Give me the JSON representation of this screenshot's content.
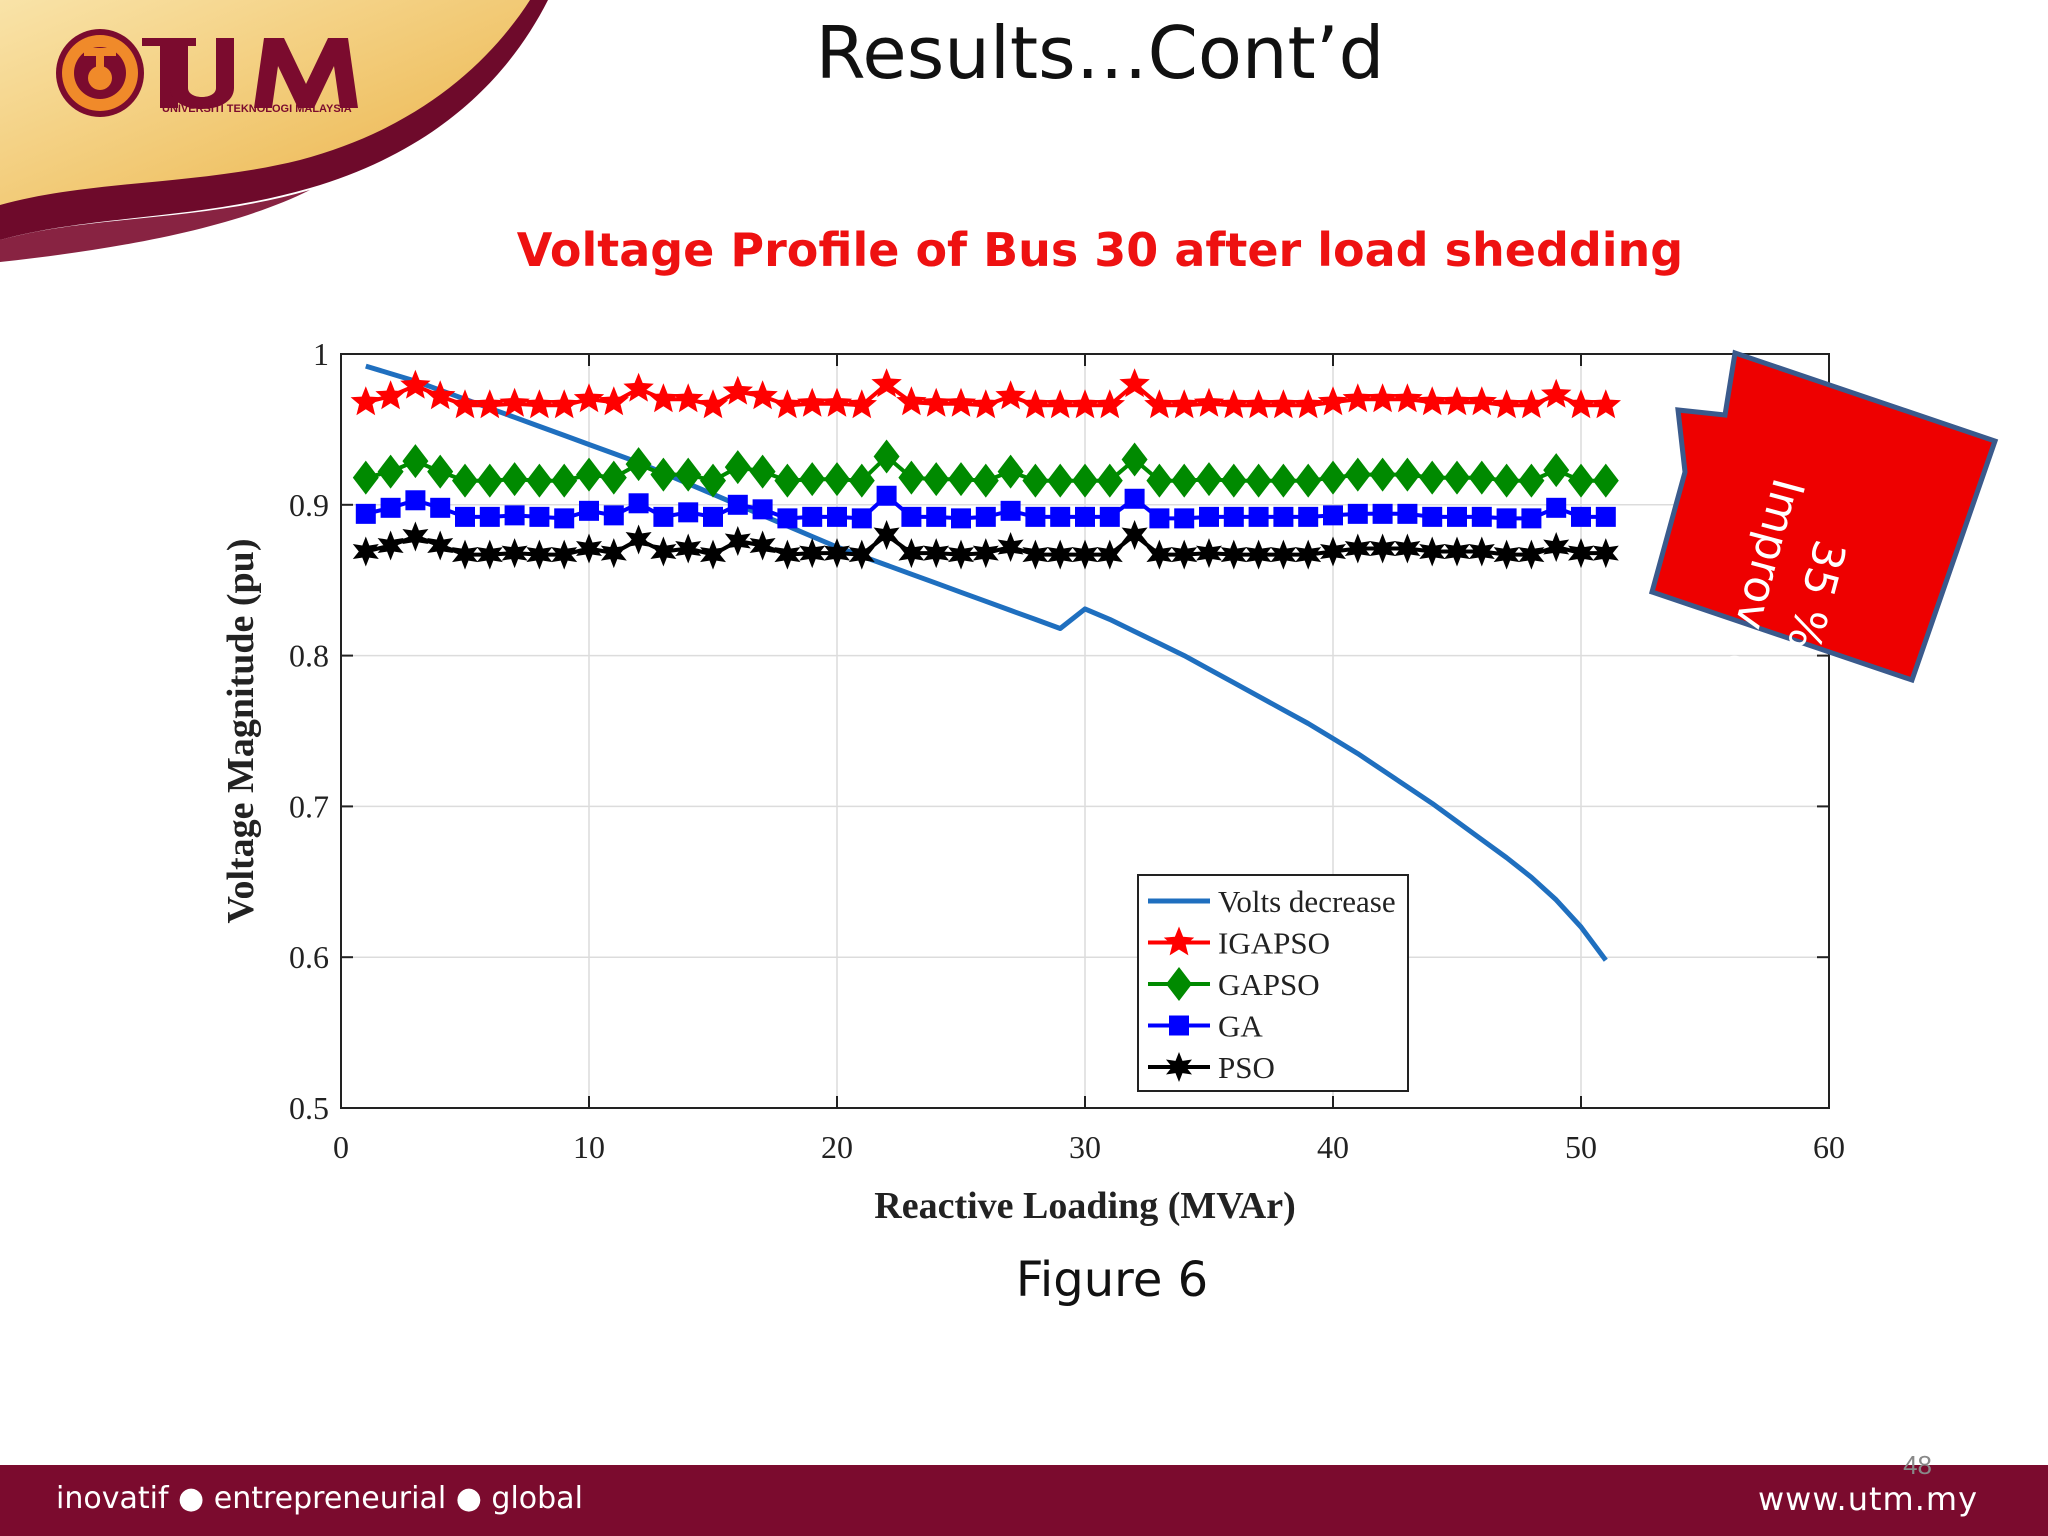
{
  "slide": {
    "title": "Results…Cont’d",
    "chart_heading": "Voltage Profile of Bus 30 after load shedding",
    "figure_caption": "Figure 6",
    "page_number": "48",
    "callout": {
      "line1": "35 %",
      "line2": "Improved",
      "fill_color": "#ee0000",
      "border_color": "#3a5a8c"
    }
  },
  "logo": {
    "name": "UTM",
    "subtitle": "UNIVERSITI TEKNOLOGI MALAYSIA"
  },
  "footer": {
    "tagline": "inovatif ● entrepreneurial ● global",
    "url": "www.utm.my"
  },
  "colors": {
    "brand_maroon": "#7b0b2e",
    "brand_gold": "#f2c26a",
    "heading_red": "#ee1111"
  },
  "chart_data": {
    "type": "line",
    "title": "",
    "xlabel": "Reactive Loading (MVAr)",
    "ylabel": "Voltage Magnitude (pu)",
    "xlim": [
      0,
      60
    ],
    "ylim": [
      0.5,
      1
    ],
    "xticks": [
      "0",
      "10",
      "20",
      "30",
      "40",
      "50",
      "60"
    ],
    "yticks": [
      "0.5",
      "0.6",
      "0.7",
      "0.8",
      "0.9",
      "1"
    ],
    "grid": true,
    "legend_position": "bottom-center",
    "x": [
      1,
      2,
      3,
      4,
      5,
      6,
      7,
      8,
      9,
      10,
      11,
      12,
      13,
      14,
      15,
      16,
      17,
      18,
      19,
      20,
      21,
      22,
      23,
      24,
      25,
      26,
      27,
      28,
      29,
      30,
      31,
      32,
      33,
      34,
      35,
      36,
      37,
      38,
      39,
      40,
      41,
      42,
      43,
      44,
      45,
      46,
      47,
      48,
      49,
      50,
      51
    ],
    "series": [
      {
        "name": "Volts decrease",
        "color": "#1f6fbf",
        "marker": "none",
        "values": [
          0.992,
          0.987,
          0.982,
          0.976,
          0.97,
          0.964,
          0.958,
          0.952,
          0.946,
          0.94,
          0.934,
          0.928,
          0.921,
          0.914,
          0.907,
          0.9,
          0.893,
          0.886,
          0.879,
          0.872,
          0.866,
          0.86,
          0.854,
          0.848,
          0.842,
          0.836,
          0.83,
          0.824,
          0.818,
          0.831,
          0.824,
          0.816,
          0.808,
          0.8,
          0.791,
          0.782,
          0.773,
          0.764,
          0.755,
          0.745,
          0.735,
          0.724,
          0.713,
          0.702,
          0.69,
          0.678,
          0.666,
          0.653,
          0.638,
          0.62,
          0.598
        ]
      },
      {
        "name": "IGAPSO",
        "color": "#ff0000",
        "marker": "star5",
        "values": [
          0.968,
          0.972,
          0.979,
          0.972,
          0.966,
          0.966,
          0.967,
          0.966,
          0.966,
          0.97,
          0.968,
          0.977,
          0.97,
          0.97,
          0.966,
          0.975,
          0.972,
          0.966,
          0.967,
          0.967,
          0.966,
          0.98,
          0.968,
          0.967,
          0.967,
          0.966,
          0.972,
          0.966,
          0.966,
          0.966,
          0.966,
          0.98,
          0.966,
          0.966,
          0.967,
          0.966,
          0.966,
          0.966,
          0.966,
          0.968,
          0.97,
          0.97,
          0.97,
          0.968,
          0.968,
          0.968,
          0.966,
          0.966,
          0.973,
          0.966,
          0.966
        ]
      },
      {
        "name": "GAPSO",
        "color": "#008a00",
        "marker": "diamond",
        "values": [
          0.918,
          0.922,
          0.929,
          0.922,
          0.916,
          0.916,
          0.917,
          0.916,
          0.916,
          0.92,
          0.918,
          0.927,
          0.92,
          0.92,
          0.916,
          0.925,
          0.922,
          0.916,
          0.917,
          0.917,
          0.916,
          0.932,
          0.918,
          0.917,
          0.917,
          0.916,
          0.922,
          0.916,
          0.916,
          0.916,
          0.916,
          0.93,
          0.916,
          0.916,
          0.917,
          0.916,
          0.916,
          0.916,
          0.916,
          0.918,
          0.92,
          0.92,
          0.92,
          0.918,
          0.918,
          0.918,
          0.916,
          0.916,
          0.923,
          0.916,
          0.916
        ]
      },
      {
        "name": "GA",
        "color": "#0000ff",
        "marker": "square",
        "values": [
          0.894,
          0.898,
          0.903,
          0.898,
          0.892,
          0.892,
          0.893,
          0.892,
          0.891,
          0.896,
          0.893,
          0.901,
          0.892,
          0.895,
          0.892,
          0.9,
          0.897,
          0.891,
          0.892,
          0.892,
          0.891,
          0.906,
          0.892,
          0.892,
          0.891,
          0.892,
          0.896,
          0.892,
          0.892,
          0.892,
          0.892,
          0.904,
          0.891,
          0.891,
          0.892,
          0.892,
          0.892,
          0.892,
          0.892,
          0.893,
          0.894,
          0.894,
          0.894,
          0.892,
          0.892,
          0.892,
          0.891,
          0.891,
          0.898,
          0.892,
          0.892
        ]
      },
      {
        "name": "PSO",
        "color": "#000000",
        "marker": "star6",
        "values": [
          0.869,
          0.873,
          0.879,
          0.873,
          0.867,
          0.867,
          0.868,
          0.867,
          0.867,
          0.871,
          0.868,
          0.877,
          0.869,
          0.871,
          0.867,
          0.876,
          0.873,
          0.867,
          0.868,
          0.868,
          0.867,
          0.88,
          0.868,
          0.868,
          0.867,
          0.868,
          0.872,
          0.867,
          0.867,
          0.867,
          0.867,
          0.88,
          0.867,
          0.867,
          0.868,
          0.867,
          0.867,
          0.867,
          0.867,
          0.869,
          0.871,
          0.871,
          0.871,
          0.869,
          0.869,
          0.869,
          0.867,
          0.867,
          0.872,
          0.868,
          0.868
        ]
      }
    ]
  }
}
